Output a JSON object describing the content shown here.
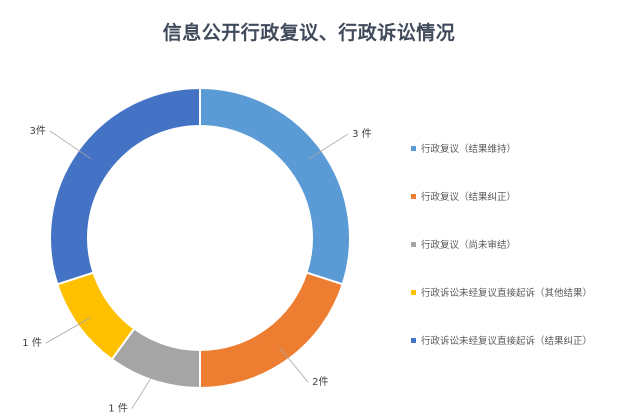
{
  "chart_data": {
    "type": "pie",
    "title": "信息公开行政复议、行政诉讼情况",
    "slices": [
      {
        "name": "行政复议（结果维持）",
        "value": 3,
        "label": "3 件",
        "color": "#5b9bd5"
      },
      {
        "name": "行政复议（结果纠正）",
        "value": 2,
        "label": "2件",
        "color": "#ed7d31"
      },
      {
        "name": "行政复议（尚未审结）",
        "value": 1,
        "label": "1 件",
        "color": "#a5a5a5"
      },
      {
        "name": "行政诉讼未经复议直接起诉（其他结果）",
        "value": 1,
        "label": "1 件",
        "color": "#ffc000"
      },
      {
        "name": "行政诉讼未经复议直接起诉（结果纠正）",
        "value": 3,
        "label": "3件",
        "color": "#4472c4"
      }
    ],
    "legend": "right"
  }
}
